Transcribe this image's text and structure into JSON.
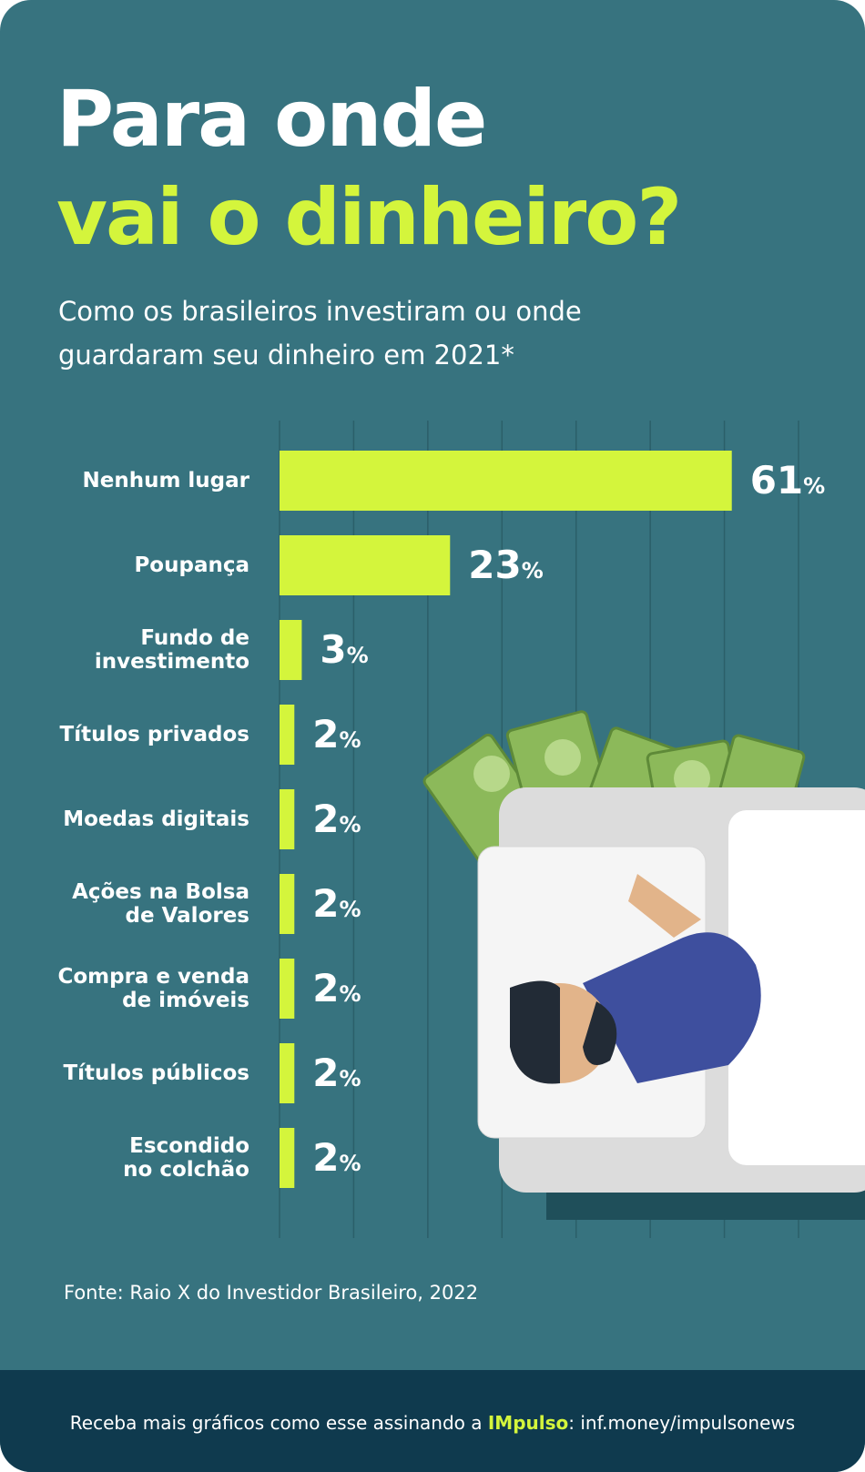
{
  "header": {
    "title": "Para onde",
    "title_highlight": "vai o dinheiro?",
    "subtitle": "Como os brasileiros investiram ou onde\nguardaram seu dinheiro em 2021*"
  },
  "chart_data": {
    "type": "bar",
    "orientation": "horizontal",
    "color": "#d4f53c",
    "categories": [
      "Nenhum lugar",
      "Poupança",
      "Fundo de\ninvestimento",
      "Títulos privados",
      "Moedas digitais",
      "Ações na Bolsa\nde Valores",
      "Compra e venda\nde imóveis",
      "Títulos públicos",
      "Escondido\nno colchão"
    ],
    "values": [
      61,
      23,
      3,
      2,
      2,
      2,
      2,
      2,
      2
    ],
    "value_labels": [
      "61%",
      "23%",
      "3%",
      "2%",
      "2%",
      "2%",
      "2%",
      "2%",
      "2%"
    ],
    "xlim": [
      0,
      70
    ],
    "xticks": [
      0,
      10,
      20,
      30,
      40,
      50,
      60,
      70
    ],
    "grid": true
  },
  "source": "Fonte: Raio X do Investidor Brasileiro, 2022",
  "footer": {
    "prefix": "Receba mais gráficos como esse assinando a ",
    "brand": "IMpulso",
    "suffix": ": inf.money/impulsonews"
  }
}
